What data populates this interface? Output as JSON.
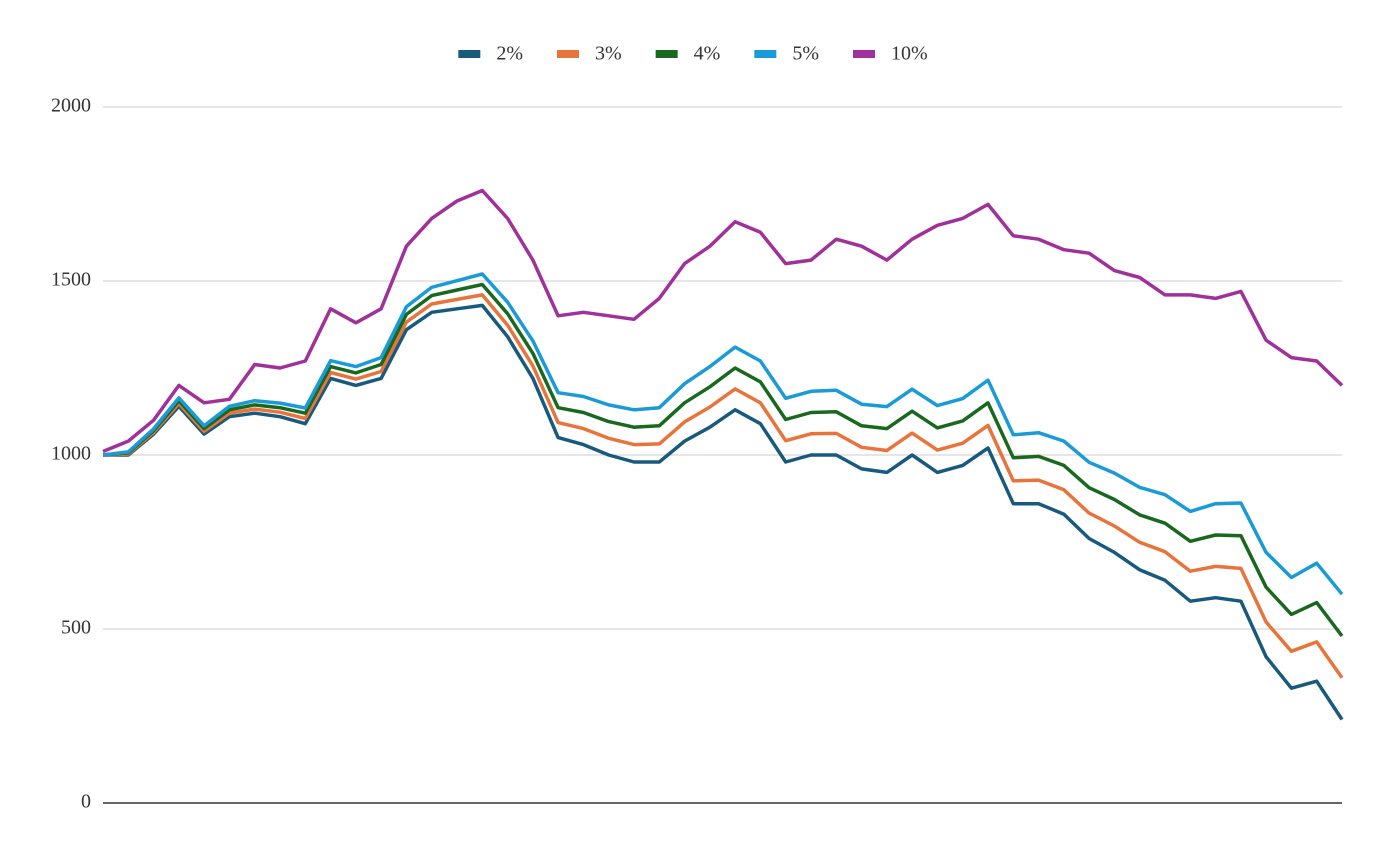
{
  "chart_data": {
    "type": "line",
    "series": [
      {
        "name": "2%",
        "color": "#185a7d",
        "values": [
          1000,
          1000,
          1060,
          1140,
          1060,
          1110,
          1120,
          1110,
          1090,
          1220,
          1200,
          1220,
          1360,
          1410,
          1420,
          1430,
          1340,
          1220,
          1050,
          1030,
          1000,
          980,
          980,
          1040,
          1080,
          1130,
          1090,
          980,
          1000,
          1000,
          960,
          950,
          1000,
          950,
          970,
          1020,
          860,
          860,
          830,
          760,
          720,
          670,
          640,
          580,
          590,
          580,
          420,
          330,
          350,
          240
        ]
      },
      {
        "name": "3%",
        "color": "#e8743b",
        "values": [
          1000,
          1003,
          1065,
          1148,
          1068,
          1120,
          1132,
          1123,
          1105,
          1237,
          1218,
          1240,
          1382,
          1434,
          1447,
          1460,
          1373,
          1256,
          1093,
          1076,
          1048,
          1030,
          1032,
          1095,
          1138,
          1190,
          1150,
          1041,
          1061,
          1062,
          1022,
          1013,
          1063,
          1014,
          1034,
          1085,
          926,
          928,
          900,
          833,
          796,
          749,
          722,
          666,
          680,
          674,
          520,
          436,
          463,
          360
        ]
      },
      {
        "name": "4%",
        "color": "#19681f",
        "values": [
          1000,
          1006,
          1070,
          1156,
          1076,
          1130,
          1144,
          1136,
          1120,
          1254,
          1236,
          1260,
          1404,
          1458,
          1474,
          1490,
          1406,
          1292,
          1136,
          1122,
          1096,
          1080,
          1084,
          1150,
          1196,
          1250,
          1210,
          1102,
          1122,
          1124,
          1084,
          1076,
          1126,
          1078,
          1098,
          1150,
          992,
          996,
          970,
          906,
          872,
          828,
          804,
          752,
          770,
          768,
          620,
          542,
          576,
          480
        ]
      },
      {
        "name": "5%",
        "color": "#1a9bd7",
        "values": [
          1000,
          1009,
          1075,
          1164,
          1084,
          1140,
          1156,
          1149,
          1135,
          1271,
          1254,
          1280,
          1426,
          1482,
          1501,
          1520,
          1439,
          1328,
          1179,
          1168,
          1144,
          1130,
          1136,
          1205,
          1254,
          1310,
          1270,
          1163,
          1183,
          1186,
          1146,
          1139,
          1189,
          1142,
          1162,
          1215,
          1058,
          1064,
          1040,
          979,
          948,
          907,
          886,
          838,
          860,
          862,
          720,
          648,
          689,
          600
        ]
      },
      {
        "name": "10%",
        "color": "#a0309a",
        "values": [
          1010,
          1040,
          1100,
          1200,
          1150,
          1160,
          1260,
          1250,
          1270,
          1420,
          1380,
          1420,
          1600,
          1680,
          1730,
          1760,
          1680,
          1560,
          1400,
          1410,
          1400,
          1390,
          1450,
          1550,
          1600,
          1670,
          1640,
          1550,
          1560,
          1620,
          1600,
          1560,
          1620,
          1660,
          1680,
          1720,
          1630,
          1620,
          1590,
          1580,
          1530,
          1510,
          1460,
          1460,
          1450,
          1470,
          1330,
          1280,
          1270,
          1200
        ]
      }
    ],
    "ylim": [
      0,
      2000
    ],
    "yticks": [
      0,
      500,
      1000,
      1500,
      2000
    ],
    "grid": true,
    "legend": "top"
  }
}
